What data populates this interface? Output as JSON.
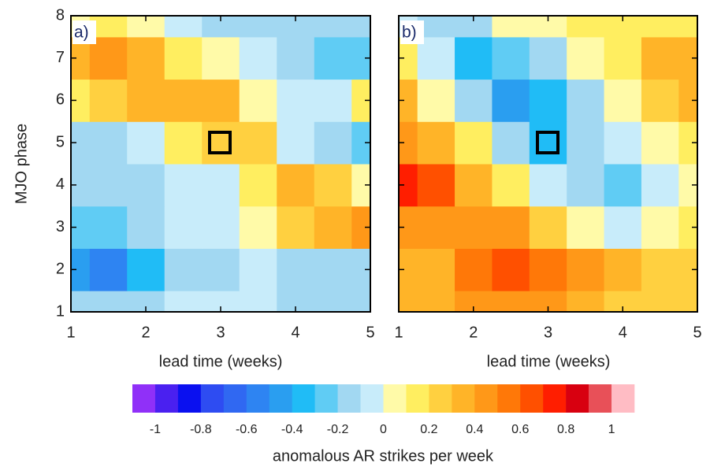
{
  "chart_data": [
    {
      "type": "heatmap",
      "annotation": "a)",
      "xlabel": "lead time (weeks)",
      "ylabel": "MJO phase",
      "x": [
        1,
        1.5,
        2,
        2.5,
        3,
        3.5,
        4,
        4.5,
        5
      ],
      "y": [
        1,
        2,
        3,
        4,
        5,
        6,
        7,
        8
      ],
      "values": [
        [
          -0.15,
          -0.2,
          -0.15,
          -0.1,
          -0.1,
          -0.1,
          -0.15,
          -0.15,
          -0.2
        ],
        [
          -0.5,
          -0.6,
          -0.4,
          -0.2,
          -0.15,
          -0.1,
          -0.15,
          -0.2,
          -0.2
        ],
        [
          -0.3,
          -0.3,
          -0.2,
          -0.1,
          -0.1,
          0.05,
          0.2,
          0.35,
          0.4
        ],
        [
          -0.2,
          -0.15,
          -0.15,
          -0.1,
          -0.05,
          0.15,
          0.3,
          0.25,
          0.05
        ],
        [
          -0.15,
          -0.15,
          -0.1,
          0.1,
          0.25,
          0.2,
          -0.1,
          -0.2,
          -0.3
        ],
        [
          0.1,
          0.25,
          0.3,
          0.35,
          0.3,
          0.05,
          -0.1,
          -0.1,
          0.1
        ],
        [
          0.35,
          0.4,
          0.3,
          0.15,
          0.05,
          -0.1,
          -0.2,
          -0.3,
          -0.3
        ],
        [
          0.05,
          0.1,
          0.05,
          -0.1,
          -0.2,
          -0.2,
          -0.15,
          -0.2,
          -0.2
        ]
      ],
      "xlim": [
        1,
        5
      ],
      "ylim": [
        1,
        8
      ],
      "xticks": [
        1,
        2,
        3,
        4,
        5
      ],
      "yticks": [
        1,
        2,
        3,
        4,
        5,
        6,
        7,
        8
      ]
    },
    {
      "type": "heatmap",
      "annotation": "b)",
      "xlabel": "lead time (weeks)",
      "x": [
        1,
        1.5,
        2,
        2.5,
        3,
        3.5,
        4,
        4.5,
        5
      ],
      "y": [
        1,
        2,
        3,
        4,
        5,
        6,
        7,
        8
      ],
      "values": [
        [
          0.3,
          0.35,
          0.4,
          0.45,
          0.4,
          0.3,
          0.2,
          0.2,
          0.25
        ],
        [
          0.3,
          0.35,
          0.5,
          0.65,
          0.55,
          0.4,
          0.3,
          0.25,
          0.2
        ],
        [
          0.4,
          0.45,
          0.45,
          0.4,
          0.2,
          0.05,
          -0.05,
          0.05,
          0.15
        ],
        [
          0.75,
          0.65,
          0.3,
          0.15,
          -0.05,
          -0.15,
          -0.25,
          -0.1,
          0.05
        ],
        [
          0.4,
          0.35,
          0.1,
          -0.15,
          -0.4,
          -0.2,
          -0.1,
          0.05,
          0.1
        ],
        [
          0.3,
          0.05,
          -0.2,
          -0.5,
          -0.35,
          -0.15,
          0.05,
          0.2,
          0.3
        ],
        [
          0.1,
          -0.1,
          -0.35,
          -0.3,
          -0.2,
          0.05,
          0.15,
          0.3,
          0.3
        ],
        [
          -0.1,
          -0.2,
          -0.15,
          0.05,
          0.05,
          0.1,
          0.15,
          0.15,
          0.1
        ]
      ],
      "xlim": [
        1,
        5
      ],
      "ylim": [
        1,
        8
      ],
      "xticks": [
        1,
        2,
        3,
        4,
        5
      ],
      "yticks": [
        1,
        2,
        3,
        4,
        5,
        6,
        7,
        8
      ]
    },
    {
      "type": "colorbar",
      "xlabel": "anomalous AR strikes per week",
      "bins": [
        -1.1,
        -1.0,
        -0.9,
        -0.8,
        -0.7,
        -0.6,
        -0.5,
        -0.4,
        -0.3,
        -0.2,
        -0.1,
        0,
        0.1,
        0.2,
        0.3,
        0.4,
        0.5,
        0.6,
        0.7,
        0.8,
        0.9,
        1.0,
        1.1
      ],
      "colors": [
        "#9030f8",
        "#4a20f0",
        "#0a10f0",
        "#2e4cf2",
        "#3068f2",
        "#2e84f2",
        "#2a9ef0",
        "#20bcf6",
        "#60ccf4",
        "#a2d8f2",
        "#c8ecfa",
        "#fffaa8",
        "#ffee60",
        "#ffd040",
        "#ffb428",
        "#ff9818",
        "#ff7808",
        "#ff5000",
        "#ff1e00",
        "#d80010",
        "#e85058",
        "#ffbcc4"
      ],
      "xlim": [
        -1.1,
        1.1
      ],
      "xticks": [
        -1,
        -0.8,
        -0.6,
        -0.4,
        -0.2,
        0,
        0.2,
        0.4,
        0.6,
        0.8,
        1
      ]
    }
  ]
}
